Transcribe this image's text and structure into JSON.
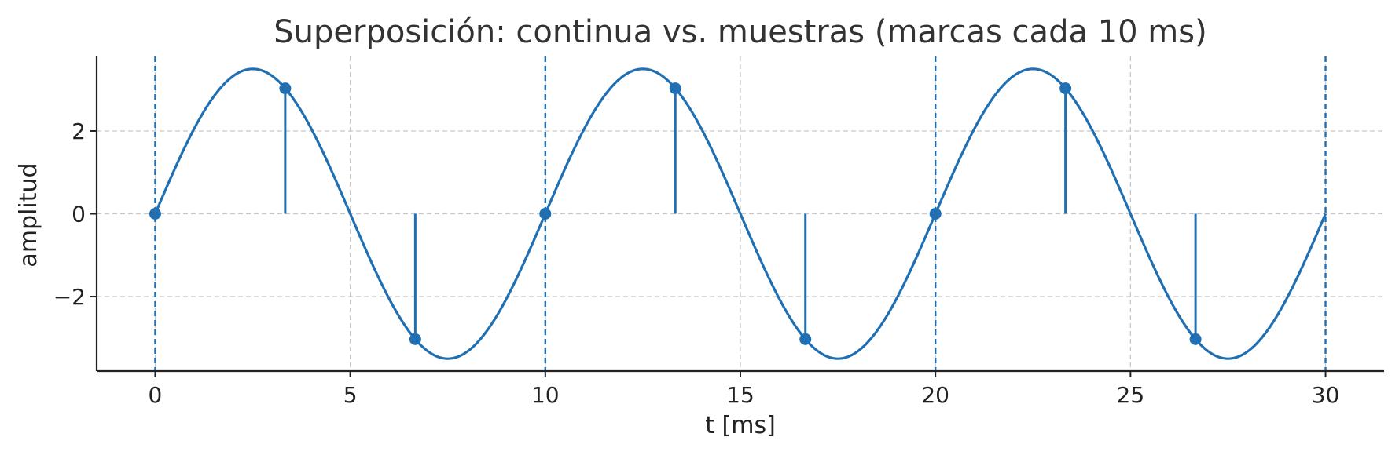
{
  "chart_data": {
    "type": "line",
    "title": "Superposición: continua vs. muestras (marcas cada 10 ms)",
    "xlabel": "t [ms]",
    "ylabel": "amplitud",
    "xlim": [
      -1.5,
      31.5
    ],
    "ylim": [
      -3.8,
      3.8
    ],
    "xticks": [
      0,
      5,
      10,
      15,
      20,
      25,
      30
    ],
    "yticks": [
      -2,
      0,
      2
    ],
    "ytick_labels": [
      "−2",
      "0",
      "2"
    ],
    "grid": true,
    "color": "#1f6fb2",
    "continuous": {
      "amplitude": 3.5,
      "period_ms": 10,
      "t_start": 0,
      "t_end": 30
    },
    "samples": {
      "t": [
        0,
        3.333,
        6.667,
        10,
        13.333,
        16.667,
        20,
        23.333,
        26.667
      ],
      "values": [
        0,
        3.03,
        -3.03,
        0,
        3.03,
        -3.03,
        0,
        3.03,
        -3.03
      ]
    },
    "markers_t": [
      0,
      10,
      20,
      30
    ]
  }
}
